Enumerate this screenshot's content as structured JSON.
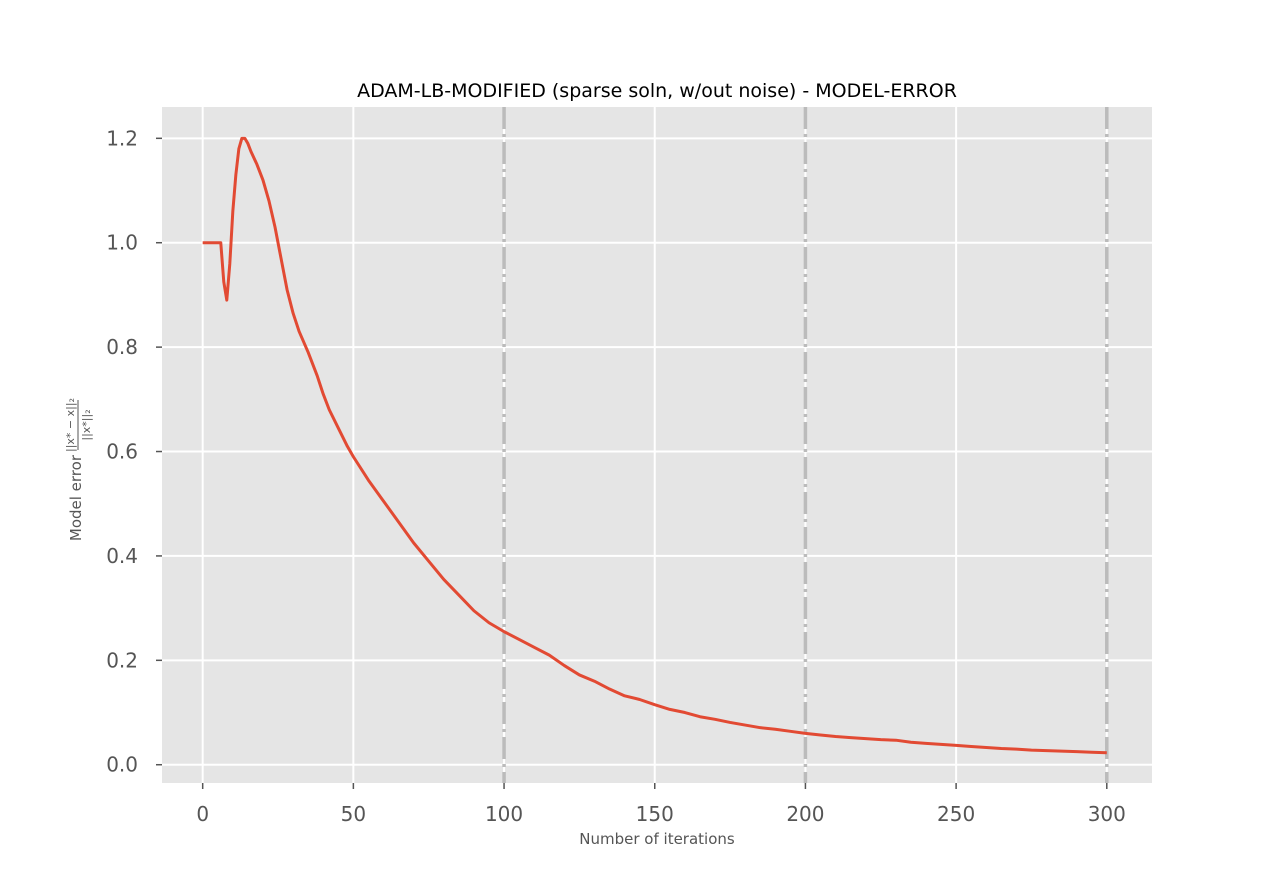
{
  "chart_data": {
    "type": "line",
    "title": "ADAM-LB-MODIFIED (sparse soln, w/out noise) - MODEL-ERROR",
    "xlabel": "Number of iterations",
    "ylabel": {
      "prefix": "Model error",
      "numerator": "||x* − x||₂",
      "denominator": "||x*||₂"
    },
    "xlim": [
      -13.5,
      315
    ],
    "ylim": [
      -0.035,
      1.26
    ],
    "xticks": [
      0,
      50,
      100,
      150,
      200,
      250,
      300
    ],
    "xtick_labels": [
      "0",
      "50",
      "100",
      "150",
      "200",
      "250",
      "300"
    ],
    "yticks": [
      0.0,
      0.2,
      0.4,
      0.6,
      0.8,
      1.0,
      1.2
    ],
    "ytick_labels": [
      "0.0",
      "0.2",
      "0.4",
      "0.6",
      "0.8",
      "1.0",
      "1.2"
    ],
    "grid": true,
    "vlines": [
      100,
      200,
      300
    ],
    "colors": {
      "line": "#E24A33",
      "background": "#E5E5E5",
      "grid": "#FFFFFF",
      "vline": "#BBBBBB"
    },
    "x": [
      0,
      2,
      4,
      6,
      7,
      8,
      9,
      10,
      11,
      12,
      13,
      14,
      15,
      16,
      18,
      20,
      22,
      24,
      26,
      28,
      30,
      32,
      35,
      38,
      40,
      42,
      45,
      48,
      50,
      55,
      60,
      65,
      70,
      75,
      80,
      85,
      90,
      95,
      100,
      105,
      110,
      115,
      120,
      125,
      130,
      135,
      140,
      145,
      150,
      155,
      160,
      165,
      170,
      175,
      180,
      185,
      190,
      195,
      200,
      205,
      210,
      215,
      220,
      225,
      230,
      235,
      240,
      245,
      250,
      255,
      260,
      265,
      270,
      275,
      280,
      285,
      290,
      295,
      300
    ],
    "y": [
      1.0,
      1.0,
      1.0,
      1.0,
      0.925,
      0.89,
      0.96,
      1.06,
      1.13,
      1.18,
      1.2,
      1.2,
      1.19,
      1.175,
      1.15,
      1.12,
      1.08,
      1.03,
      0.97,
      0.91,
      0.865,
      0.83,
      0.79,
      0.745,
      0.71,
      0.68,
      0.645,
      0.61,
      0.59,
      0.545,
      0.505,
      0.465,
      0.425,
      0.39,
      0.355,
      0.325,
      0.295,
      0.272,
      0.255,
      0.24,
      0.225,
      0.21,
      0.19,
      0.172,
      0.16,
      0.145,
      0.132,
      0.125,
      0.115,
      0.106,
      0.1,
      0.092,
      0.087,
      0.081,
      0.076,
      0.071,
      0.068,
      0.064,
      0.06,
      0.057,
      0.054,
      0.052,
      0.05,
      0.048,
      0.047,
      0.043,
      0.041,
      0.039,
      0.037,
      0.035,
      0.033,
      0.031,
      0.03,
      0.028,
      0.027,
      0.026,
      0.025,
      0.024,
      0.023
    ]
  }
}
